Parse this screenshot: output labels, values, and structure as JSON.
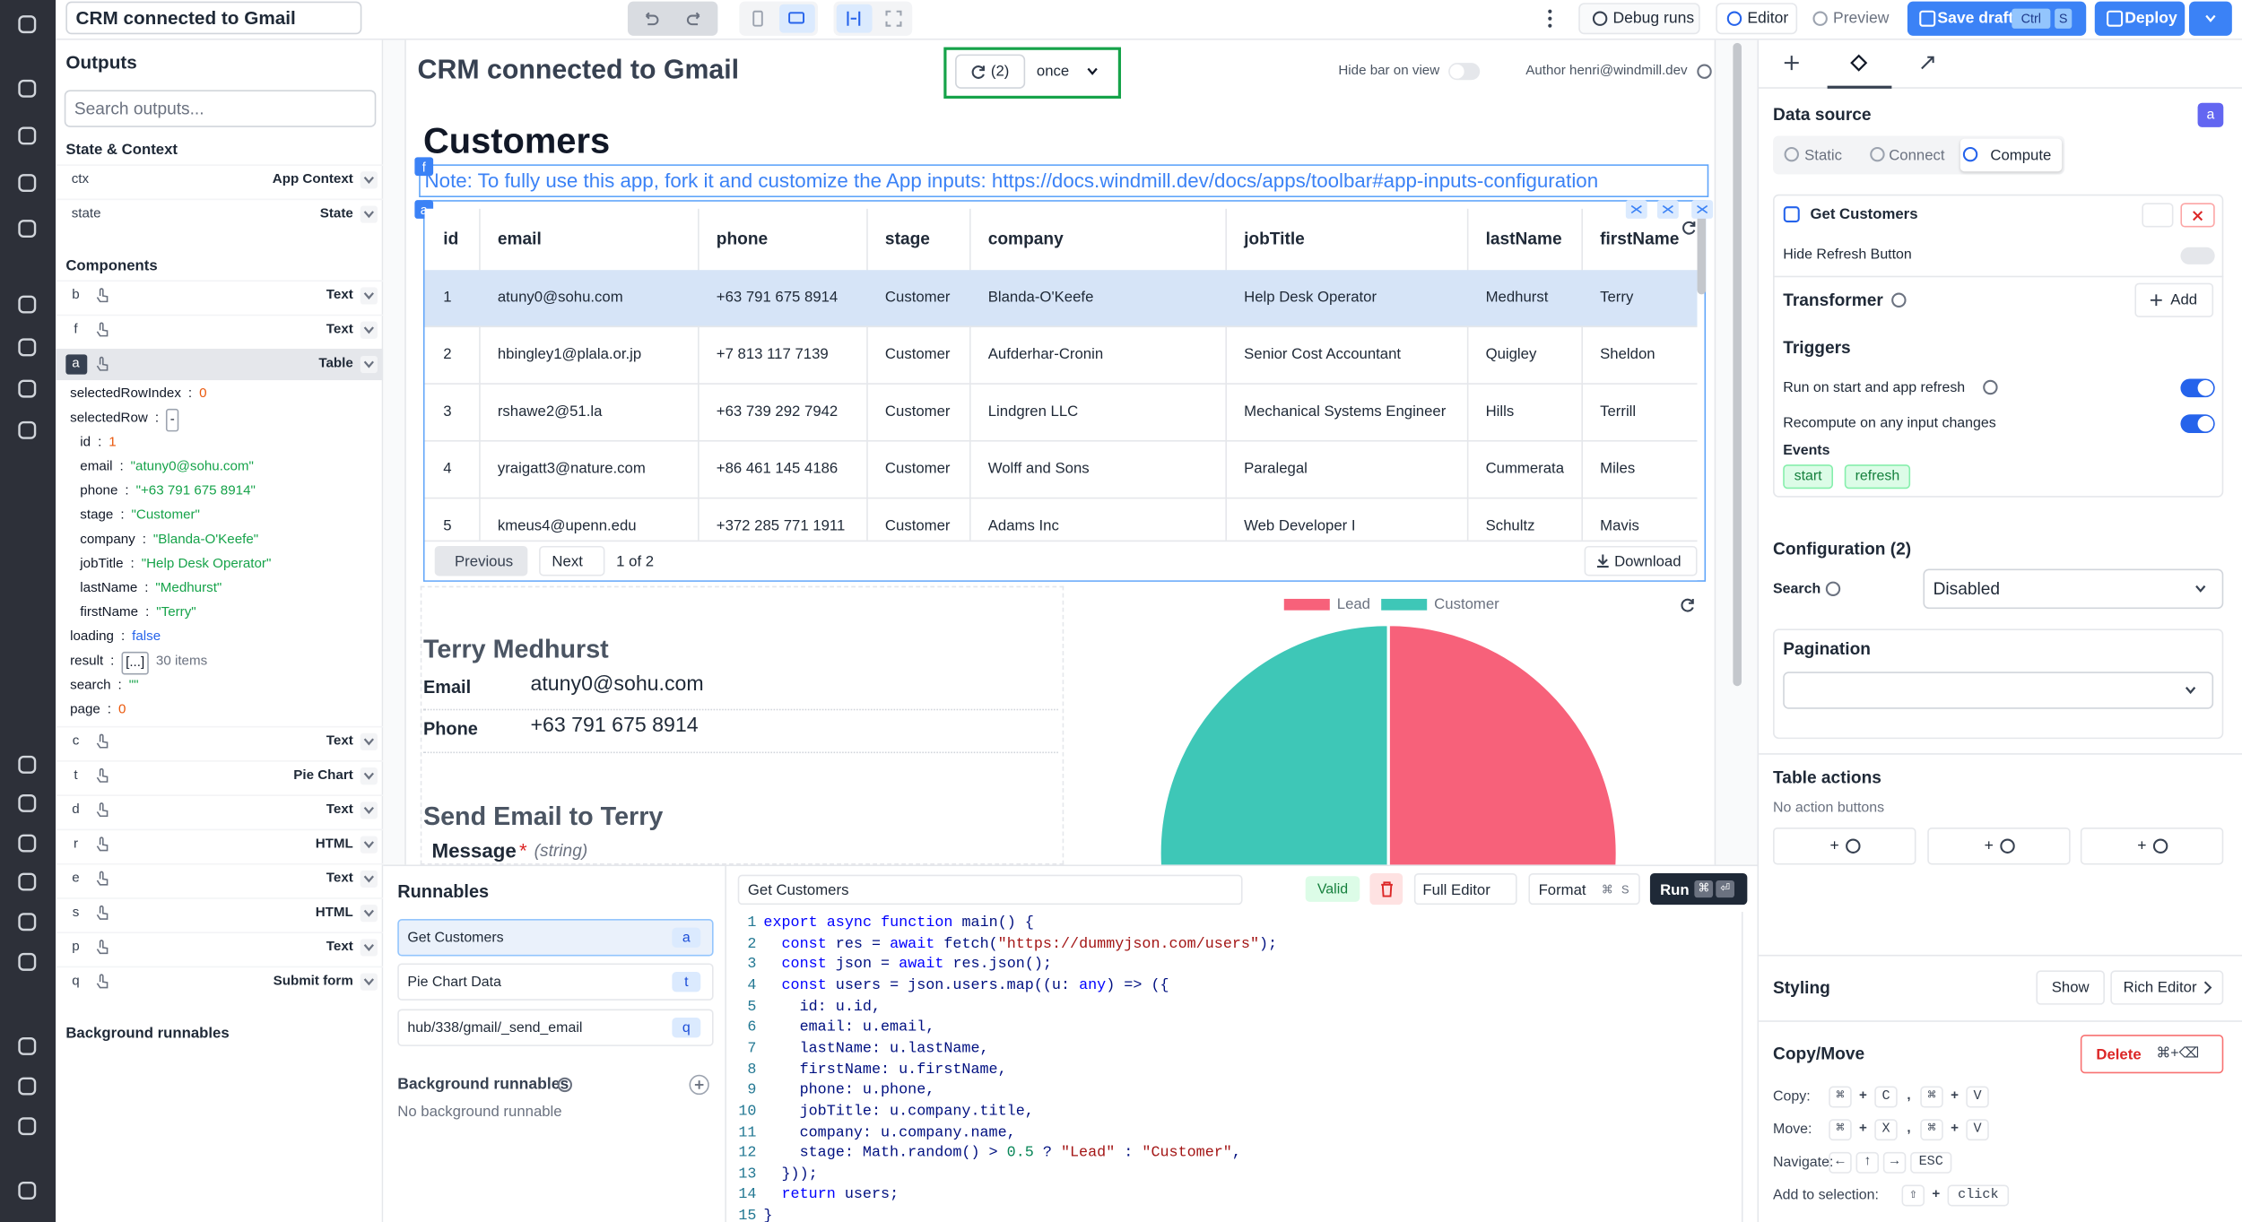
{
  "topbar": {
    "app_name": "CRM connected to Gmail",
    "debug_runs": "Debug runs",
    "editor": "Editor",
    "preview": "Preview",
    "save_draft": "Save draft",
    "save_keys": [
      "Ctrl",
      "S"
    ],
    "deploy": "Deploy"
  },
  "outputs": {
    "title": "Outputs",
    "search_placeholder": "Search outputs...",
    "state_heading": "State & Context",
    "state_rows": [
      {
        "key": "ctx",
        "label": "App Context"
      },
      {
        "key": "state",
        "label": "State"
      }
    ],
    "components_heading": "Components",
    "components": [
      {
        "id": "b",
        "type": "Text"
      },
      {
        "id": "f",
        "type": "Text"
      },
      {
        "id": "a",
        "type": "Table"
      },
      {
        "id": "c",
        "type": "Text"
      },
      {
        "id": "t",
        "type": "Pie Chart"
      },
      {
        "id": "d",
        "type": "Text"
      },
      {
        "id": "r",
        "type": "HTML"
      },
      {
        "id": "e",
        "type": "Text"
      },
      {
        "id": "s",
        "type": "HTML"
      },
      {
        "id": "p",
        "type": "Text"
      },
      {
        "id": "q",
        "type": "Submit form"
      }
    ],
    "separator": ":",
    "table_outputs": [
      {
        "key": "selectedRowIndex",
        "value": "0"
      },
      {
        "key": "selectedRow",
        "value": "-"
      }
    ],
    "selected_row": [
      {
        "key": "id",
        "value": "1"
      },
      {
        "key": "email",
        "value": "\"atuny0@sohu.com\""
      },
      {
        "key": "phone",
        "value": "\"+63 791 675 8914\""
      },
      {
        "key": "stage",
        "value": "\"Customer\""
      },
      {
        "key": "company",
        "value": "\"Blanda-O'Keefe\""
      },
      {
        "key": "jobTitle",
        "value": "\"Help Desk Operator\""
      },
      {
        "key": "lastName",
        "value": "\"Medhurst\""
      },
      {
        "key": "firstName",
        "value": "\"Terry\""
      }
    ],
    "table_outputs_more": [
      {
        "key": "loading",
        "value": "false"
      },
      {
        "key": "result",
        "value": "[...]",
        "note": "30 items"
      },
      {
        "key": "search",
        "value": "\"\""
      },
      {
        "key": "page",
        "value": "0"
      }
    ],
    "background_heading": "Background runnables"
  },
  "canvas": {
    "title": "CRM connected to Gmail",
    "run_count": "(2)",
    "run_mode": "once",
    "hide_bar": "Hide bar on view",
    "author": "Author henri@windmill.dev",
    "heading": "Customers",
    "heading_id": "f",
    "note": "Note: To fully use this app, fork it and customize the App inputs: https://docs.windmill.dev/docs/apps/toolbar#app-inputs-configuration",
    "table_id": "a",
    "table": {
      "columns": [
        "id",
        "email",
        "phone",
        "stage",
        "company",
        "jobTitle",
        "lastName",
        "firstName"
      ],
      "rows": [
        [
          "1",
          "atuny0@sohu.com",
          "+63 791 675 8914",
          "Customer",
          "Blanda-O'Keefe",
          "Help Desk Operator",
          "Medhurst",
          "Terry"
        ],
        [
          "2",
          "hbingley1@plala.or.jp",
          "+7 813 117 7139",
          "Customer",
          "Aufderhar-Cronin",
          "Senior Cost Accountant",
          "Quigley",
          "Sheldon"
        ],
        [
          "3",
          "rshawe2@51.la",
          "+63 739 292 7942",
          "Customer",
          "Lindgren LLC",
          "Mechanical Systems Engineer",
          "Hills",
          "Terrill"
        ],
        [
          "4",
          "yraigatt3@nature.com",
          "+86 461 145 4186",
          "Customer",
          "Wolff and Sons",
          "Paralegal",
          "Cummerata",
          "Miles"
        ],
        [
          "5",
          "kmeus4@upenn.edu",
          "+372 285 771 1911",
          "Customer",
          "Adams Inc",
          "Web Developer I",
          "Schultz",
          "Mavis"
        ]
      ]
    },
    "pagination": {
      "previous": "Previous",
      "next": "Next",
      "page": "1 of 2",
      "download": "Download"
    },
    "detail": {
      "name": "Terry Medhurst",
      "email_label": "Email",
      "email": "atuny0@sohu.com",
      "phone_label": "Phone",
      "phone": "+63 791 675 8914"
    },
    "form": {
      "title": "Send Email to Terry",
      "field": "Message",
      "required": "*",
      "type": "(string)"
    },
    "pie": {
      "series": [
        {
          "name": "Lead",
          "color": "#f7617a",
          "value": 50
        },
        {
          "name": "Customer",
          "color": "#3ec7b7",
          "value": 50
        }
      ]
    }
  },
  "runnables": {
    "title": "Runnables",
    "items": [
      {
        "name": "Get Customers",
        "id": "a"
      },
      {
        "name": "Pie Chart Data",
        "id": "t"
      },
      {
        "name": "hub/338/gmail/_send_email",
        "id": "q"
      }
    ],
    "background_title": "Background runnables",
    "background_empty": "No background runnable"
  },
  "editor": {
    "name": "Get Customers",
    "valid": "Valid",
    "full_editor": "Full Editor",
    "format": "Format",
    "format_keys": [
      "⌘",
      "S"
    ],
    "run": "Run",
    "run_keys": [
      "⌘",
      "⏎"
    ],
    "code": [
      {
        "n": "1",
        "text": "export async function main() {"
      },
      {
        "n": "2",
        "text": "  const res = await fetch(\"https://dummyjson.com/users\");"
      },
      {
        "n": "3",
        "text": "  const json = await res.json();"
      },
      {
        "n": "4",
        "text": "  const users = json.users.map((u: any) => ({"
      },
      {
        "n": "5",
        "text": "    id: u.id,"
      },
      {
        "n": "6",
        "text": "    email: u.email,"
      },
      {
        "n": "7",
        "text": "    lastName: u.lastName,"
      },
      {
        "n": "8",
        "text": "    firstName: u.firstName,"
      },
      {
        "n": "9",
        "text": "    phone: u.phone,"
      },
      {
        "n": "10",
        "text": "    jobTitle: u.company.title,"
      },
      {
        "n": "11",
        "text": "    company: u.company.name,"
      },
      {
        "n": "12",
        "text": "    stage: Math.random() > 0.5 ? \"Lead\" : \"Customer\","
      },
      {
        "n": "13",
        "text": "  }));"
      },
      {
        "n": "14",
        "text": "  return users;"
      },
      {
        "n": "15",
        "text": "}"
      }
    ]
  },
  "settings": {
    "data_source": "Data source",
    "component_id": "a",
    "modes": [
      "Static",
      "Connect",
      "Compute"
    ],
    "runnable": "Get Customers",
    "hide_refresh": "Hide Refresh Button",
    "transformer": "Transformer",
    "add": "Add",
    "triggers": "Triggers",
    "trigger_options": [
      "Run on start and app refresh",
      "Recompute on any input changes"
    ],
    "events_label": "Events",
    "events": [
      "start",
      "refresh"
    ],
    "configuration": "Configuration (2)",
    "search_label": "Search",
    "search_value": "Disabled",
    "pagination": "Pagination",
    "table_actions": "Table actions",
    "no_actions": "No action buttons",
    "action_buttons": [
      "+",
      "+",
      "+"
    ],
    "styling": "Styling",
    "show": "Show",
    "rich_editor": "Rich Editor",
    "copy_move": "Copy/Move",
    "delete": "Delete",
    "delete_keys": "⌘+⌫",
    "shortcuts": [
      {
        "label": "Copy:",
        "keys": [
          "⌘",
          "+",
          "C",
          ",",
          "⌘",
          "+",
          "V"
        ]
      },
      {
        "label": "Move:",
        "keys": [
          "⌘",
          "+",
          "X",
          ",",
          "⌘",
          "+",
          "V"
        ]
      },
      {
        "label": "Navigate:",
        "keys": [
          "←",
          "↑",
          "→",
          "ESC"
        ]
      },
      {
        "label": "Add to selection:",
        "keys": [
          "⇧",
          "+",
          "click"
        ]
      }
    ]
  }
}
